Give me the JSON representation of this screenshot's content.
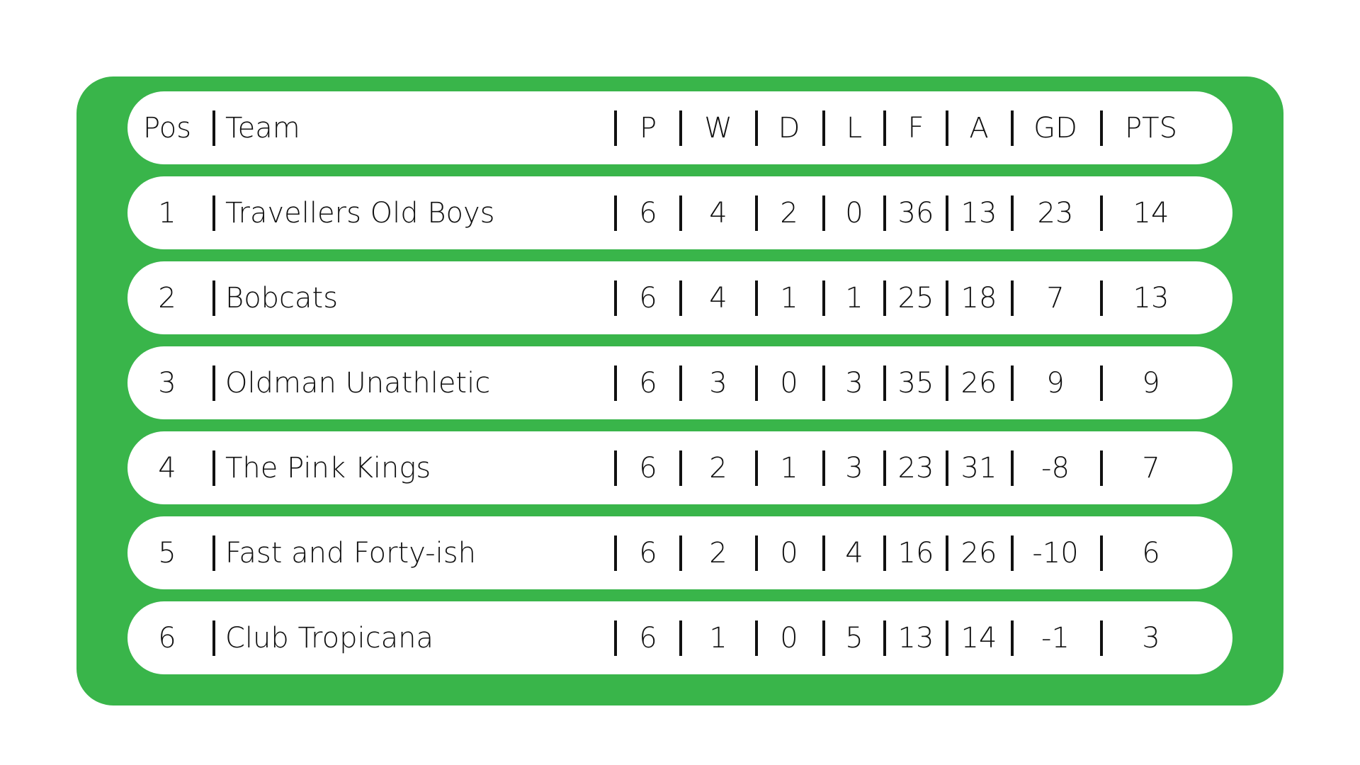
{
  "table": {
    "header": [
      "Pos",
      "Team",
      "P",
      "W",
      "D",
      "L",
      "F",
      "A",
      "GD",
      "PTS"
    ],
    "rows": [
      [
        1,
        "Travellers Old Boys",
        6,
        4,
        2,
        0,
        36,
        13,
        23,
        14
      ],
      [
        2,
        "Bobcats",
        6,
        4,
        1,
        1,
        25,
        18,
        7,
        13
      ],
      [
        3,
        "Oldman Unathletic",
        6,
        3,
        0,
        3,
        35,
        26,
        9,
        9
      ],
      [
        4,
        "The Pink Kings",
        6,
        2,
        1,
        3,
        23,
        31,
        -8,
        7
      ],
      [
        5,
        "Fast and Forty-ish",
        6,
        2,
        0,
        4,
        16,
        26,
        -10,
        6
      ],
      [
        6,
        "Club Tropicana",
        6,
        1,
        0,
        5,
        13,
        14,
        -1,
        3
      ]
    ]
  }
}
